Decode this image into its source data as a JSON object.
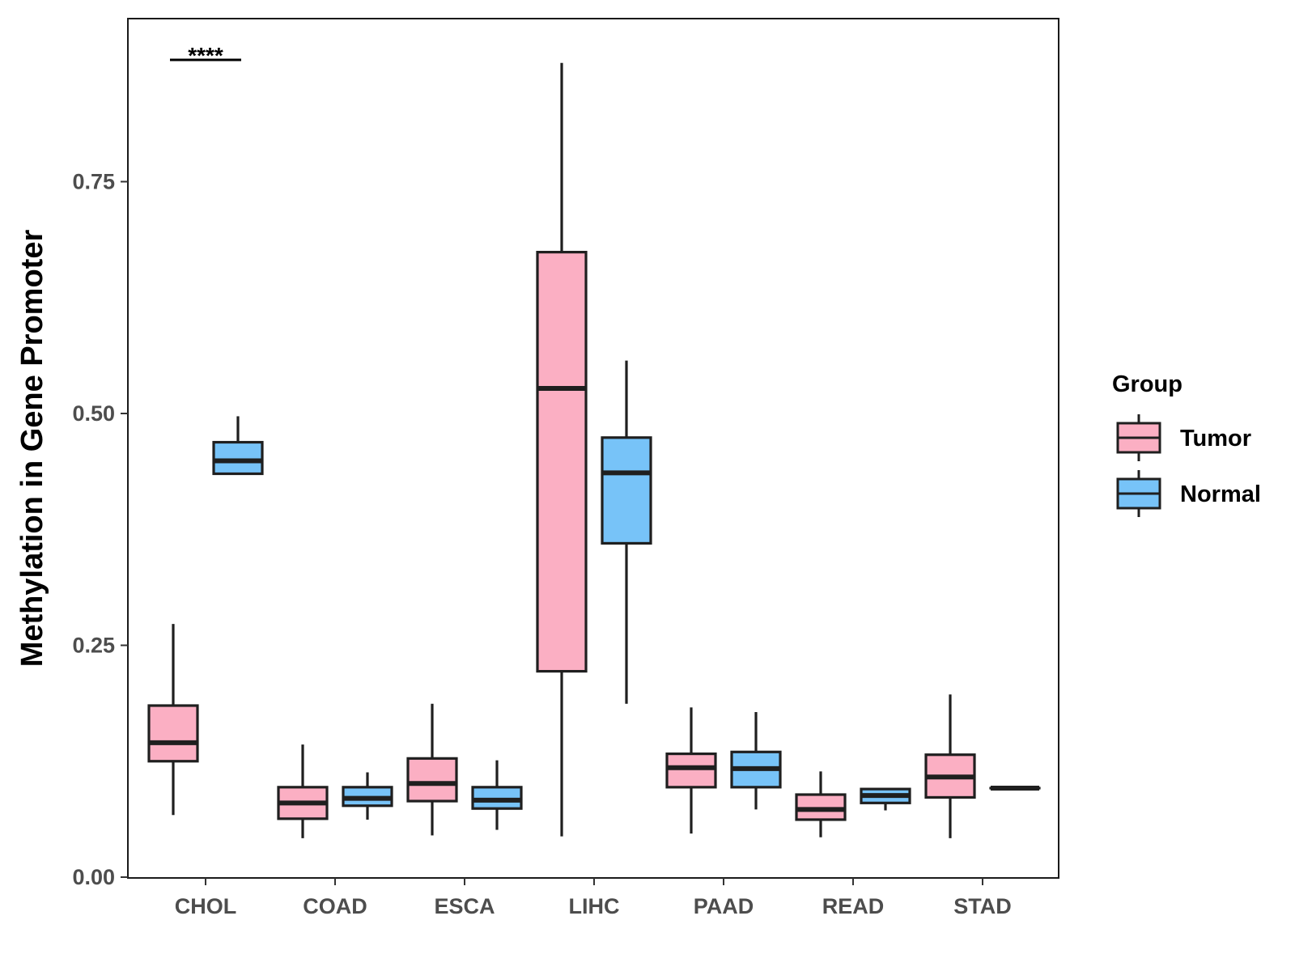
{
  "chart_data": {
    "type": "boxplot",
    "title": "",
    "xlabel": "",
    "ylabel": "Methylation in Gene Promoter",
    "ylim": [
      0,
      0.9
    ],
    "yticks": [
      0.0,
      0.25,
      0.5,
      0.75
    ],
    "ytick_labels": [
      "0.00",
      "0.25",
      "0.50",
      "0.75"
    ],
    "categories": [
      "CHOL",
      "COAD",
      "ESCA",
      "LIHC",
      "PAAD",
      "READ",
      "STAD"
    ],
    "legend": {
      "title": "Group",
      "position": "right",
      "entries": [
        {
          "name": "Tumor",
          "color": "#fbafc3"
        },
        {
          "name": "Normal",
          "color": "#77c3f8"
        }
      ]
    },
    "series": [
      {
        "name": "Tumor",
        "color": "#fbafc3",
        "boxes": [
          {
            "category": "CHOL",
            "whisker_low": 0.067,
            "q1": 0.125,
            "median": 0.145,
            "q3": 0.185,
            "whisker_high": 0.273
          },
          {
            "category": "COAD",
            "whisker_low": 0.042,
            "q1": 0.063,
            "median": 0.08,
            "q3": 0.097,
            "whisker_high": 0.143
          },
          {
            "category": "ESCA",
            "whisker_low": 0.045,
            "q1": 0.082,
            "median": 0.101,
            "q3": 0.128,
            "whisker_high": 0.187
          },
          {
            "category": "LIHC",
            "whisker_low": 0.044,
            "q1": 0.222,
            "median": 0.527,
            "q3": 0.674,
            "whisker_high": 0.878
          },
          {
            "category": "PAAD",
            "whisker_low": 0.047,
            "q1": 0.097,
            "median": 0.118,
            "q3": 0.133,
            "whisker_high": 0.183
          },
          {
            "category": "READ",
            "whisker_low": 0.043,
            "q1": 0.062,
            "median": 0.073,
            "q3": 0.089,
            "whisker_high": 0.114
          },
          {
            "category": "STAD",
            "whisker_low": 0.042,
            "q1": 0.086,
            "median": 0.108,
            "q3": 0.132,
            "whisker_high": 0.197
          }
        ]
      },
      {
        "name": "Normal",
        "color": "#77c3f8",
        "boxes": [
          {
            "category": "CHOL",
            "whisker_low": 0.435,
            "q1": 0.435,
            "median": 0.449,
            "q3": 0.469,
            "whisker_high": 0.497
          },
          {
            "category": "COAD",
            "whisker_low": 0.062,
            "q1": 0.077,
            "median": 0.085,
            "q3": 0.097,
            "whisker_high": 0.113
          },
          {
            "category": "ESCA",
            "whisker_low": 0.051,
            "q1": 0.074,
            "median": 0.083,
            "q3": 0.097,
            "whisker_high": 0.126
          },
          {
            "category": "LIHC",
            "whisker_low": 0.187,
            "q1": 0.36,
            "median": 0.436,
            "q3": 0.474,
            "whisker_high": 0.557
          },
          {
            "category": "PAAD",
            "whisker_low": 0.073,
            "q1": 0.097,
            "median": 0.117,
            "q3": 0.135,
            "whisker_high": 0.178
          },
          {
            "category": "READ",
            "whisker_low": 0.072,
            "q1": 0.08,
            "median": 0.088,
            "q3": 0.095,
            "whisker_high": 0.095
          },
          {
            "category": "STAD",
            "whisker_low": 0.096,
            "q1": 0.096,
            "median": 0.096,
            "q3": 0.096,
            "whisker_high": 0.096
          }
        ]
      }
    ],
    "annotations": [
      {
        "category": "CHOL",
        "text": "****",
        "y": 0.88
      }
    ]
  }
}
